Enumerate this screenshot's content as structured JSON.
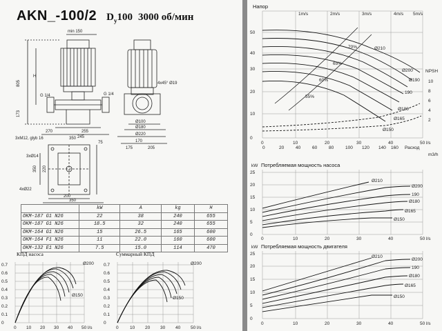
{
  "header": {
    "title": "AKN_-100/2",
    "dn_prefix": "D",
    "dn_sub": "y",
    "dn_value": "100",
    "speed": "3000 об/мин"
  },
  "drawing": {
    "dims_front": [
      "min 150",
      "805",
      "H",
      "G 1/4",
      "G 1/4",
      "173",
      "270",
      "255",
      "350",
      "3xM12, glyb 16",
      "3xØ14",
      "4xØ22",
      "245",
      "75",
      "200",
      "350",
      "350",
      "220"
    ],
    "dims_side": [
      "Ø100",
      "Ø180",
      "Ø220",
      "170",
      "175",
      "205",
      "4x45° Ø19"
    ]
  },
  "models_table": {
    "headers": [
      "",
      "kW",
      "A",
      "kg",
      "H"
    ],
    "rows": [
      [
        "OKM-187 G1 N26",
        "22",
        "38",
        "240",
        "655"
      ],
      [
        "OKM-187 G1 N26",
        "18.5",
        "32",
        "240",
        "655"
      ],
      [
        "OKM-164 G1 N26",
        "15",
        "26.5",
        "165",
        "600"
      ],
      [
        "OKM-164 F1 N26",
        "11",
        "22.0",
        "160",
        "600"
      ],
      [
        "OKM-132 E1 N26",
        "7.5",
        "15.0",
        "114",
        "470"
      ]
    ]
  },
  "charts": {
    "eff_pump": {
      "title": "КПД насоса",
      "yticks": [
        "0",
        "0.1",
        "0.2",
        "0.3",
        "0.4",
        "0.5",
        "0.6",
        "0.7"
      ],
      "xticks": [
        "0",
        "10",
        "20",
        "30",
        "40",
        "50 l/s"
      ],
      "labels": [
        "Ø200",
        "Ø150"
      ]
    },
    "eff_total": {
      "title": "Суммарный КПД",
      "yticks": [
        "0",
        "0.1",
        "0.2",
        "0.3",
        "0.4",
        "0.5",
        "0.6",
        "0.7"
      ],
      "xticks": [
        "0",
        "10",
        "20",
        "30",
        "40",
        "50 l/s"
      ],
      "labels": [
        "Ø200",
        "Ø150"
      ]
    },
    "head": {
      "title": "Напор",
      "unit": "m",
      "yticks": [
        "0",
        "10",
        "20",
        "30",
        "40",
        "50"
      ],
      "xticks": [
        "0",
        "10",
        "20",
        "30",
        "40",
        "50 l/s"
      ],
      "xticks_m3h": [
        "0",
        "20",
        "40",
        "60",
        "80",
        "100",
        "120",
        "140",
        "160",
        "m3/h"
      ],
      "velocity_labels": [
        "1m/s",
        "2m/s",
        "3m/s",
        "4m/s",
        "5m/s"
      ],
      "npsh_label": "NPSH",
      "npsh_ticks": [
        "10",
        "8",
        "6",
        "4",
        "2"
      ],
      "x_caption": "Расход",
      "curve_labels": [
        "Ø210",
        "Ø200",
        "Ø190",
        "190",
        "Ø180",
        "Ø165",
        "Ø150"
      ],
      "eff_labels": [
        "55%",
        "60%",
        "65%",
        "70%"
      ]
    },
    "power_pump": {
      "title": "Потребляемая мощность насоса",
      "unit": "kW",
      "yticks": [
        "0",
        "5",
        "10",
        "15",
        "20",
        "25"
      ],
      "xticks": [
        "0",
        "10",
        "20",
        "30",
        "40",
        "50 l/s"
      ],
      "curve_labels": [
        "Ø210",
        "Ø200",
        "190",
        "Ø180",
        "Ø165",
        "Ø150"
      ]
    },
    "power_motor": {
      "title": "Потребляемая мощность двигателя",
      "unit": "kW",
      "yticks": [
        "0",
        "5",
        "10",
        "15",
        "20",
        "25"
      ],
      "xticks": [
        "0",
        "10",
        "20",
        "30",
        "40",
        "50 l/s"
      ],
      "curve_labels": [
        "Ø210",
        "Ø200",
        "190",
        "Ø180",
        "Ø165",
        "Ø150"
      ]
    }
  },
  "colors": {
    "paper": "#f7f7f5",
    "ink": "#1a1a1a",
    "grid": "#9a9a9a",
    "background": "#8a8a8a"
  }
}
